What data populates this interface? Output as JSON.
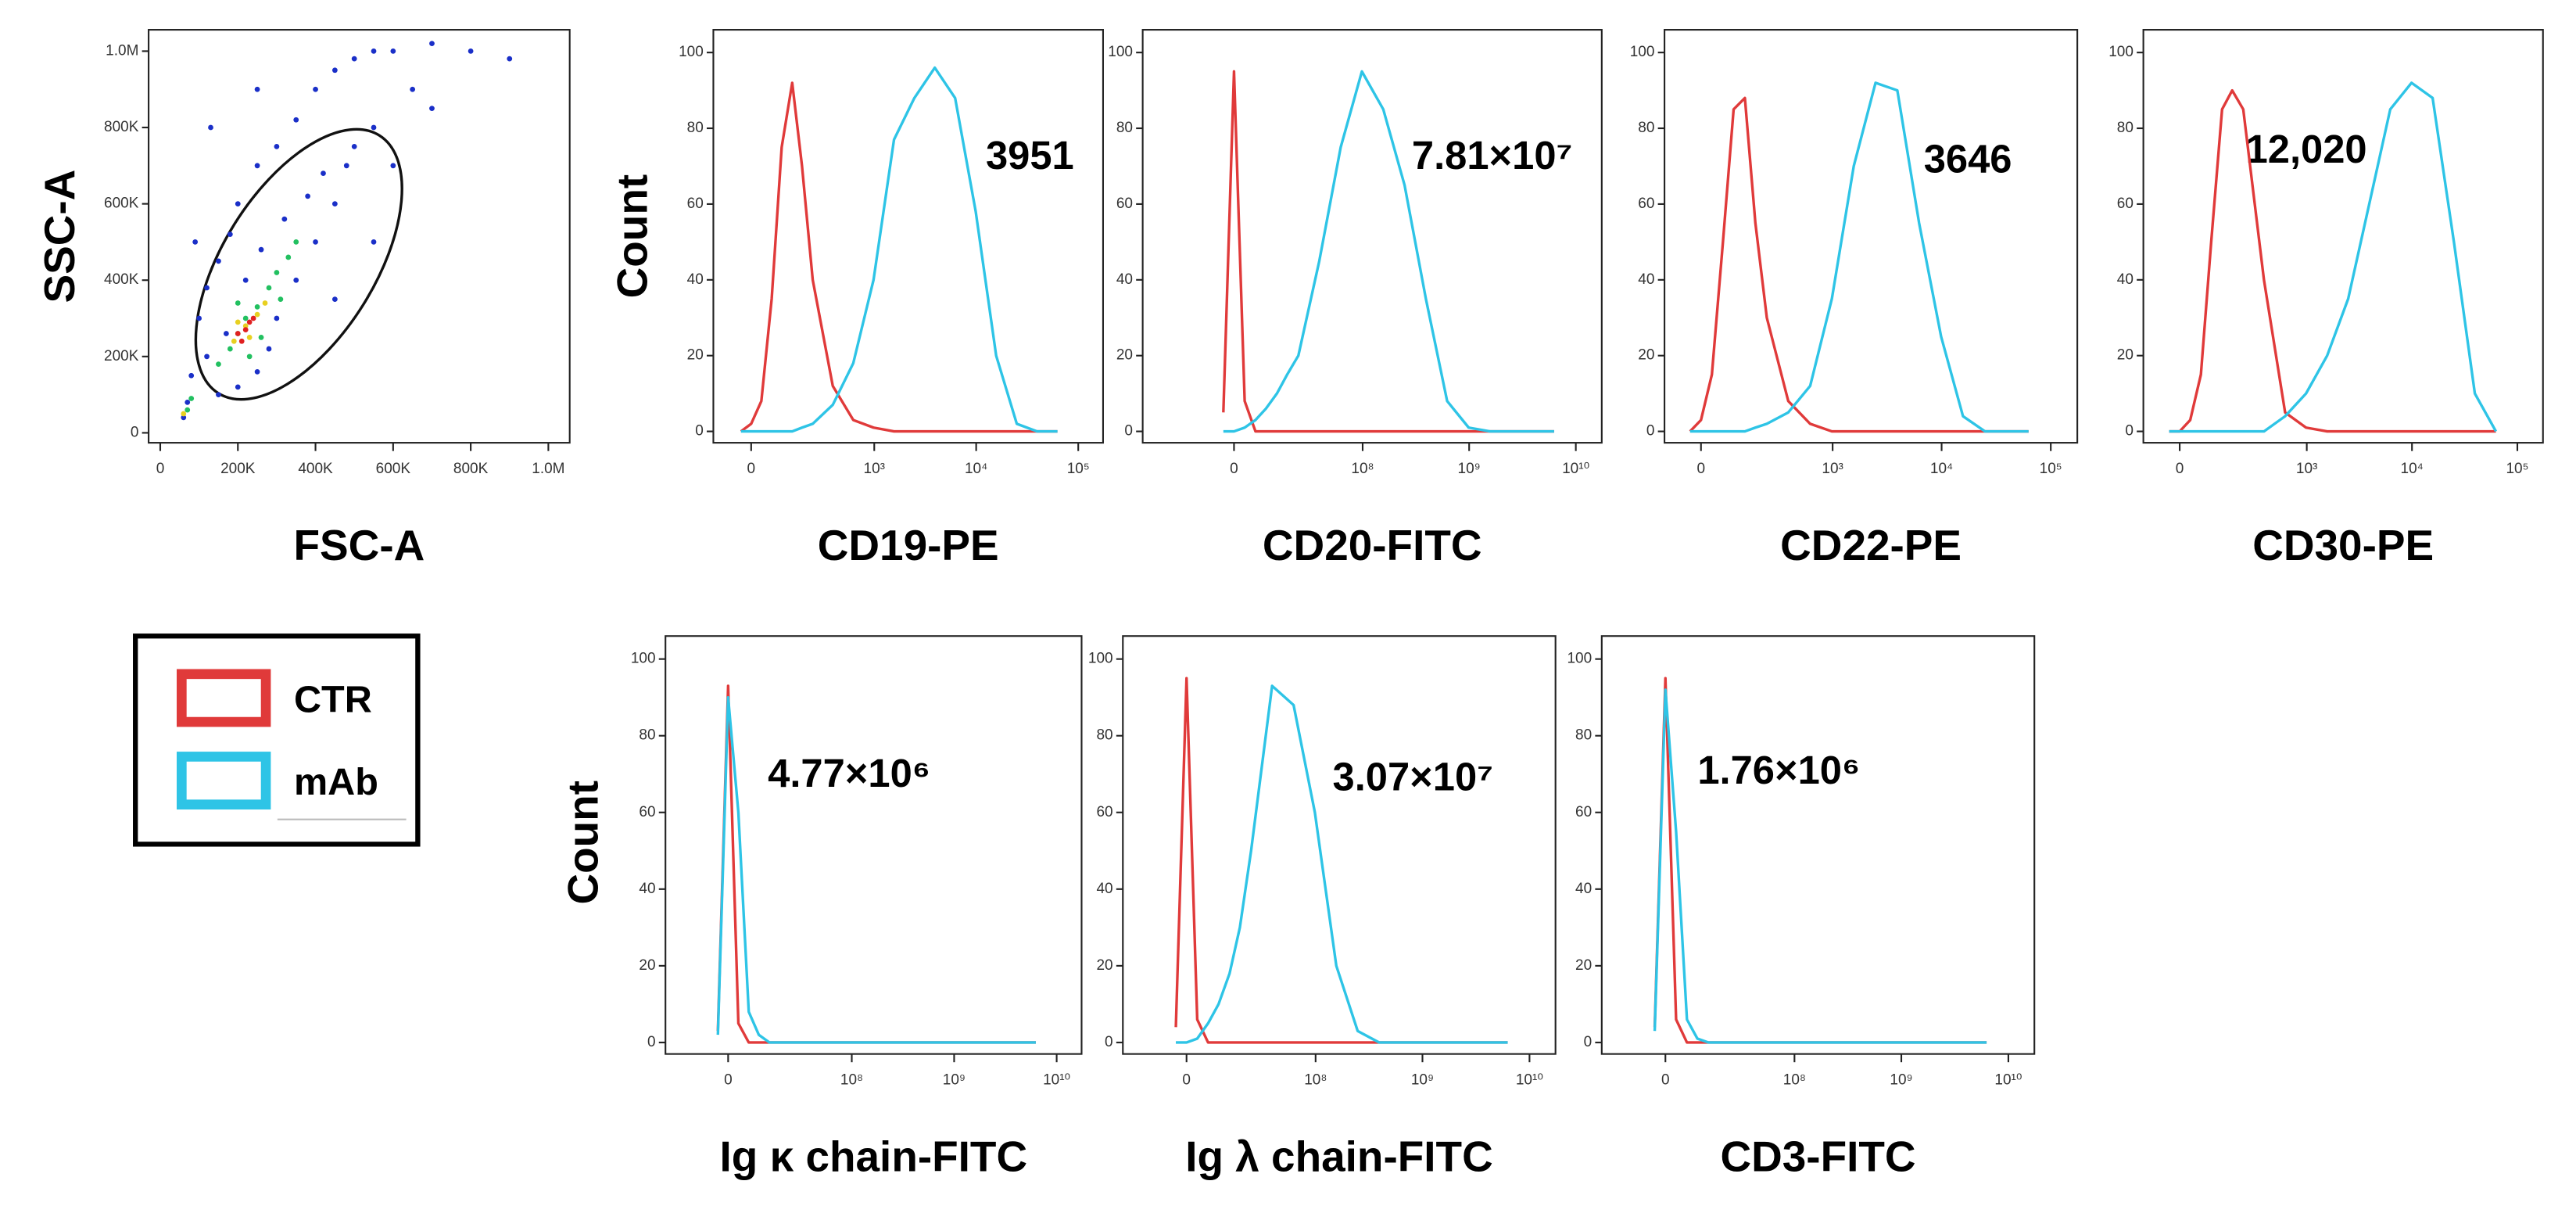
{
  "chart_data": [
    {
      "type": "scatter",
      "xlabel": "FSC-A",
      "ylabel": "SSC-A",
      "xlim": [
        -30000,
        1055000
      ],
      "ylim": [
        -26000,
        1056000
      ],
      "xticks": [
        0,
        {
          "value": 200000,
          "label": "200K"
        },
        {
          "value": 400000,
          "label": "400K"
        },
        {
          "value": 600000,
          "label": "600K"
        },
        {
          "value": 800000,
          "label": "800K"
        },
        {
          "value": 1000000,
          "label": "1.0M"
        }
      ],
      "yticks": [
        0,
        {
          "value": 200000,
          "label": "200K"
        },
        {
          "value": 400000,
          "label": "400K"
        },
        {
          "value": 600000,
          "label": "600K"
        },
        {
          "value": 800000,
          "label": "800K"
        },
        {
          "value": 1000000,
          "label": "1.0M"
        }
      ],
      "series": [
        {
          "color": "#1a2fc8",
          "x": [
            60000,
            70000,
            80000,
            100000,
            120000,
            150000,
            180000,
            200000,
            250000,
            300000,
            350000,
            400000,
            450000,
            500000,
            550000,
            600000,
            700000,
            800000,
            900000,
            650000,
            700000,
            550000,
            480000,
            450000,
            400000,
            350000,
            300000,
            280000,
            250000,
            200000,
            150000,
            120000,
            170000,
            220000,
            260000,
            320000,
            380000,
            420000,
            500000,
            600000,
            130000,
            250000,
            90000,
            450000,
            550000
          ],
          "y": [
            40000,
            80000,
            150000,
            300000,
            380000,
            450000,
            520000,
            600000,
            700000,
            750000,
            820000,
            900000,
            950000,
            980000,
            1000000,
            1000000,
            1020000,
            1000000,
            980000,
            900000,
            850000,
            800000,
            700000,
            600000,
            500000,
            400000,
            300000,
            220000,
            160000,
            120000,
            100000,
            200000,
            260000,
            400000,
            480000,
            560000,
            620000,
            680000,
            750000,
            700000,
            800000,
            900000,
            500000,
            350000,
            500000
          ]
        },
        {
          "color": "#22c060",
          "x": [
            150000,
            180000,
            200000,
            220000,
            250000,
            280000,
            300000,
            330000,
            200000,
            260000,
            310000,
            230000,
            70000,
            80000,
            350000
          ],
          "y": [
            180000,
            220000,
            260000,
            300000,
            330000,
            380000,
            420000,
            460000,
            340000,
            250000,
            350000,
            200000,
            60000,
            90000,
            500000
          ]
        },
        {
          "color": "#e8d020",
          "x": [
            190000,
            220000,
            250000,
            270000,
            200000,
            230000,
            60000
          ],
          "y": [
            240000,
            280000,
            310000,
            340000,
            290000,
            250000,
            50000
          ]
        },
        {
          "color": "#e02020",
          "x": [
            200000,
            220000,
            240000,
            210000,
            230000
          ],
          "y": [
            260000,
            270000,
            300000,
            240000,
            290000
          ]
        }
      ]
    },
    {
      "type": "line",
      "xscale": "biex",
      "xlabel": "CD19-PE",
      "ylabel": "Count",
      "annotation": "3951",
      "xlim": [
        -120,
        175000
      ],
      "ylim": [
        -3,
        106
      ],
      "xticks": [
        0,
        {
          "value": 1000,
          "label": "10³"
        },
        {
          "value": 10000,
          "label": "10⁴"
        },
        {
          "value": 100000,
          "label": "10⁵"
        }
      ],
      "yticks": [
        0,
        20,
        40,
        60,
        80,
        100
      ],
      "x": [
        -29,
        0,
        29,
        60,
        93,
        133,
        177,
        235,
        384,
        619,
        984,
        1565,
        2480,
        3930,
        6220,
        9900,
        15700,
        25000,
        39500,
        62600
      ],
      "series": [
        {
          "name": "CTR",
          "color": "#e03a3a",
          "values": [
            0,
            2,
            8,
            35,
            75,
            92,
            70,
            40,
            12,
            3,
            1,
            0,
            0,
            0,
            0,
            0,
            0,
            0,
            0,
            0
          ]
        },
        {
          "name": "mAb",
          "color": "#2ec4e6",
          "values": [
            0,
            0,
            0,
            0,
            0,
            0,
            1,
            2,
            7,
            18,
            40,
            77,
            88,
            96,
            88,
            58,
            20,
            2,
            0,
            0
          ]
        }
      ]
    },
    {
      "type": "line",
      "xscale": "biex",
      "xlabel": "CD20-FITC",
      "annotation": "7.81×10⁷",
      "xlim": [
        -44000000,
        17500000000
      ],
      "ylim": [
        -3,
        106
      ],
      "xticks": [
        0,
        {
          "value": 100000000,
          "label": "10⁸"
        },
        {
          "value": 1000000000,
          "label": "10⁹"
        },
        {
          "value": 10000000000,
          "label": "10¹⁰"
        }
      ],
      "yticks": [
        0,
        20,
        40,
        60,
        80,
        100
      ],
      "x": [
        -2900000,
        0,
        2900000,
        6000000,
        9300000,
        13300000,
        17700000,
        23500000,
        38400000,
        61900000,
        98400000,
        156500000,
        248000000,
        393000000,
        622000000,
        990000000,
        1570000000,
        2500000000,
        3950000000,
        6260000000
      ],
      "series": [
        {
          "name": "CTR",
          "color": "#e03a3a",
          "values": [
            5,
            95,
            8,
            0,
            0,
            0,
            0,
            0,
            0,
            0,
            0,
            0,
            0,
            0,
            0,
            0,
            0,
            0,
            0,
            0
          ]
        },
        {
          "name": "mAb",
          "color": "#2ec4e6",
          "values": [
            0,
            0,
            1,
            3,
            6,
            10,
            15,
            20,
            45,
            75,
            95,
            85,
            65,
            35,
            8,
            1,
            0,
            0,
            0,
            0
          ]
        }
      ]
    },
    {
      "type": "line",
      "xscale": "biex",
      "xlabel": "CD22-PE",
      "annotation": "3646",
      "xlim": [
        -106,
        175000
      ],
      "ylim": [
        -3,
        106
      ],
      "xticks": [
        0,
        {
          "value": 1000,
          "label": "10³"
        },
        {
          "value": 10000,
          "label": "10⁴"
        },
        {
          "value": 100000,
          "label": "10⁵"
        }
      ],
      "yticks": [
        0,
        20,
        40,
        60,
        80,
        100
      ],
      "x": [
        -29,
        0,
        29,
        60,
        93,
        133,
        177,
        235,
        384,
        619,
        984,
        1565,
        2480,
        3930,
        6220,
        9900,
        15700,
        25000,
        39500,
        62600
      ],
      "series": [
        {
          "name": "CTR",
          "color": "#e03a3a",
          "values": [
            0,
            3,
            15,
            50,
            85,
            88,
            55,
            30,
            8,
            2,
            0,
            0,
            0,
            0,
            0,
            0,
            0,
            0,
            0,
            0
          ]
        },
        {
          "name": "mAb",
          "color": "#2ec4e6",
          "values": [
            0,
            0,
            0,
            0,
            0,
            0,
            1,
            2,
            5,
            12,
            35,
            70,
            92,
            90,
            55,
            25,
            4,
            0,
            0,
            0
          ]
        }
      ]
    },
    {
      "type": "line",
      "xscale": "biex",
      "xlabel": "CD30-PE",
      "annotation": "12,020",
      "xlim": [
        -110,
        175000
      ],
      "ylim": [
        -3,
        106
      ],
      "xticks": [
        0,
        {
          "value": 1000,
          "label": "10³"
        },
        {
          "value": 10000,
          "label": "10⁴"
        },
        {
          "value": 100000,
          "label": "10⁵"
        }
      ],
      "yticks": [
        0,
        20,
        40,
        60,
        80,
        100
      ],
      "x": [
        -29,
        0,
        29,
        60,
        93,
        133,
        177,
        235,
        384,
        619,
        984,
        1565,
        2480,
        3930,
        6220,
        9900,
        15700,
        25000,
        39500,
        62600
      ],
      "series": [
        {
          "name": "CTR",
          "color": "#e03a3a",
          "values": [
            0,
            0,
            3,
            15,
            50,
            85,
            90,
            85,
            40,
            5,
            1,
            0,
            0,
            0,
            0,
            0,
            0,
            0,
            0,
            0
          ]
        },
        {
          "name": "mAb",
          "color": "#2ec4e6",
          "values": [
            0,
            0,
            0,
            0,
            0,
            0,
            0,
            0,
            0,
            4,
            10,
            20,
            35,
            60,
            85,
            92,
            88,
            50,
            10,
            0
          ]
        }
      ]
    },
    {
      "type": "line",
      "xscale": "biex",
      "xlabel": "Ig κ chain-FITC",
      "ylabel": "Count",
      "annotation": "4.77×10⁶",
      "xlim": [
        -24000000,
        17500000000
      ],
      "ylim": [
        -3,
        106
      ],
      "xticks": [
        0,
        {
          "value": 100000000,
          "label": "10⁸"
        },
        {
          "value": 1000000000,
          "label": "10⁹"
        },
        {
          "value": 10000000000,
          "label": "10¹⁰"
        }
      ],
      "yticks": [
        0,
        20,
        40,
        60,
        80,
        100
      ],
      "x": [
        -2900000,
        0,
        2900000,
        6000000,
        9300000,
        13300000,
        17700000,
        23500000,
        38400000,
        61900000,
        98400000,
        156500000,
        248000000,
        393000000,
        622000000,
        990000000,
        1570000000,
        2500000000,
        3950000000,
        6260000000
      ],
      "series": [
        {
          "name": "CTR",
          "color": "#e03a3a",
          "values": [
            3,
            93,
            5,
            0,
            0,
            0,
            0,
            0,
            0,
            0,
            0,
            0,
            0,
            0,
            0,
            0,
            0,
            0,
            0,
            0
          ]
        },
        {
          "name": "mAb",
          "color": "#2ec4e6",
          "values": [
            2,
            90,
            60,
            8,
            2,
            0,
            0,
            0,
            0,
            0,
            0,
            0,
            0,
            0,
            0,
            0,
            0,
            0,
            0,
            0
          ]
        }
      ]
    },
    {
      "type": "line",
      "xscale": "biex",
      "xlabel": "Ig λ chain-FITC",
      "annotation": "3.07×10⁷",
      "xlim": [
        -23000000,
        17500000000
      ],
      "ylim": [
        -3,
        106
      ],
      "xticks": [
        0,
        {
          "value": 100000000,
          "label": "10⁸"
        },
        {
          "value": 1000000000,
          "label": "10⁹"
        },
        {
          "value": 10000000000,
          "label": "10¹⁰"
        }
      ],
      "yticks": [
        0,
        20,
        40,
        60,
        80,
        100
      ],
      "x": [
        -2900000,
        0,
        2900000,
        6000000,
        9300000,
        13300000,
        17700000,
        23500000,
        38400000,
        61900000,
        98400000,
        156500000,
        248000000,
        393000000,
        622000000,
        990000000,
        1570000000,
        2500000000,
        3950000000,
        6260000000
      ],
      "series": [
        {
          "name": "CTR",
          "color": "#e03a3a",
          "values": [
            4,
            95,
            6,
            0,
            0,
            0,
            0,
            0,
            0,
            0,
            0,
            0,
            0,
            0,
            0,
            0,
            0,
            0,
            0,
            0
          ]
        },
        {
          "name": "mAb",
          "color": "#2ec4e6",
          "values": [
            0,
            0,
            1,
            5,
            10,
            18,
            30,
            50,
            93,
            88,
            60,
            20,
            3,
            0,
            0,
            0,
            0,
            0,
            0,
            0
          ]
        }
      ]
    },
    {
      "type": "line",
      "xscale": "biex",
      "xlabel": "CD3-FITC",
      "annotation": "1.76×10⁶",
      "xlim": [
        -23000000,
        17500000000
      ],
      "ylim": [
        -3,
        106
      ],
      "xticks": [
        0,
        {
          "value": 100000000,
          "label": "10⁸"
        },
        {
          "value": 1000000000,
          "label": "10⁹"
        },
        {
          "value": 10000000000,
          "label": "10¹⁰"
        }
      ],
      "yticks": [
        0,
        20,
        40,
        60,
        80,
        100
      ],
      "x": [
        -2900000,
        0,
        2900000,
        6000000,
        9300000,
        13300000,
        17700000,
        23500000,
        38400000,
        61900000,
        98400000,
        156500000,
        248000000,
        393000000,
        622000000,
        990000000,
        1570000000,
        2500000000,
        3950000000,
        6260000000
      ],
      "series": [
        {
          "name": "CTR",
          "color": "#e03a3a",
          "values": [
            4,
            95,
            6,
            0,
            0,
            0,
            0,
            0,
            0,
            0,
            0,
            0,
            0,
            0,
            0,
            0,
            0,
            0,
            0,
            0
          ]
        },
        {
          "name": "mAb",
          "color": "#2ec4e6",
          "values": [
            3,
            92,
            55,
            6,
            1,
            0,
            0,
            0,
            0,
            0,
            0,
            0,
            0,
            0,
            0,
            0,
            0,
            0,
            0,
            0
          ]
        }
      ]
    }
  ]
}
